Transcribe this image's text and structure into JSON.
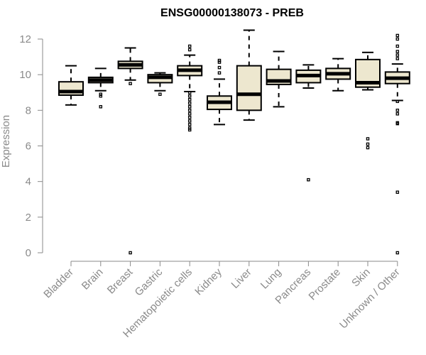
{
  "chart_data": {
    "type": "box",
    "title": "ENSG00000138073 - PREB",
    "xlabel": "",
    "ylabel": "Expression",
    "ylim": [
      0,
      12
    ],
    "yticks": [
      "0",
      "2",
      "4",
      "6",
      "8",
      "10",
      "12"
    ],
    "box_fill": "#ede7cf",
    "categories": [
      "Bladder",
      "Brain",
      "Breast",
      "Gastric",
      "Hematopoietic cells",
      "Kidney",
      "Liver",
      "Lung",
      "Pancreas",
      "Prostate",
      "Skin",
      "Unknown / Other"
    ],
    "boxes": [
      {
        "category": "Bladder",
        "whisker_low": 8.3,
        "q1": 8.85,
        "median": 9.05,
        "q3": 9.6,
        "whisker_high": 10.5,
        "outliers": []
      },
      {
        "category": "Brain",
        "whisker_low": 9.1,
        "q1": 9.55,
        "median": 9.7,
        "q3": 9.85,
        "whisker_high": 10.35,
        "outliers": [
          8.2,
          8.8,
          8.9
        ]
      },
      {
        "category": "Breast",
        "whisker_low": 9.7,
        "q1": 10.35,
        "median": 10.55,
        "q3": 10.75,
        "whisker_high": 11.5,
        "outliers": [
          9.5,
          0.0
        ]
      },
      {
        "category": "Gastric",
        "whisker_low": 9.1,
        "q1": 9.55,
        "median": 9.85,
        "q3": 10.0,
        "whisker_high": 10.1,
        "outliers": [
          8.9
        ]
      },
      {
        "category": "Hematopoietic cells",
        "whisker_low": 9.05,
        "q1": 9.95,
        "median": 10.25,
        "q3": 10.5,
        "whisker_high": 11.1,
        "outliers": [
          11.4,
          11.6,
          9.0,
          8.8,
          8.6,
          8.4,
          8.2,
          8.0,
          7.8,
          7.6,
          7.4,
          7.2,
          7.0,
          6.9
        ]
      },
      {
        "category": "Kidney",
        "whisker_low": 7.2,
        "q1": 8.05,
        "median": 8.45,
        "q3": 8.8,
        "whisker_high": 9.75,
        "outliers": [
          10.1,
          10.4,
          10.7,
          10.8
        ]
      },
      {
        "category": "Liver",
        "whisker_low": 7.45,
        "q1": 8.0,
        "median": 8.9,
        "q3": 10.5,
        "whisker_high": 12.5,
        "outliers": []
      },
      {
        "category": "Lung",
        "whisker_low": 8.2,
        "q1": 9.45,
        "median": 9.65,
        "q3": 10.3,
        "whisker_high": 11.3,
        "outliers": []
      },
      {
        "category": "Pancreas",
        "whisker_low": 9.25,
        "q1": 9.55,
        "median": 9.95,
        "q3": 10.25,
        "whisker_high": 10.55,
        "outliers": [
          4.1
        ]
      },
      {
        "category": "Prostate",
        "whisker_low": 9.1,
        "q1": 9.75,
        "median": 10.05,
        "q3": 10.35,
        "whisker_high": 10.9,
        "outliers": []
      },
      {
        "category": "Skin",
        "whisker_low": 9.15,
        "q1": 9.3,
        "median": 9.55,
        "q3": 10.85,
        "whisker_high": 11.25,
        "outliers": [
          5.9,
          6.1,
          6.4
        ]
      },
      {
        "category": "Unknown / Other",
        "whisker_low": 8.55,
        "q1": 9.5,
        "median": 9.8,
        "q3": 10.15,
        "whisker_high": 10.6,
        "outliers": [
          10.9,
          11.1,
          11.3,
          11.6,
          12.0,
          12.2,
          8.5,
          8.0,
          7.8,
          7.3,
          7.25,
          3.4,
          0.0
        ]
      }
    ]
  }
}
